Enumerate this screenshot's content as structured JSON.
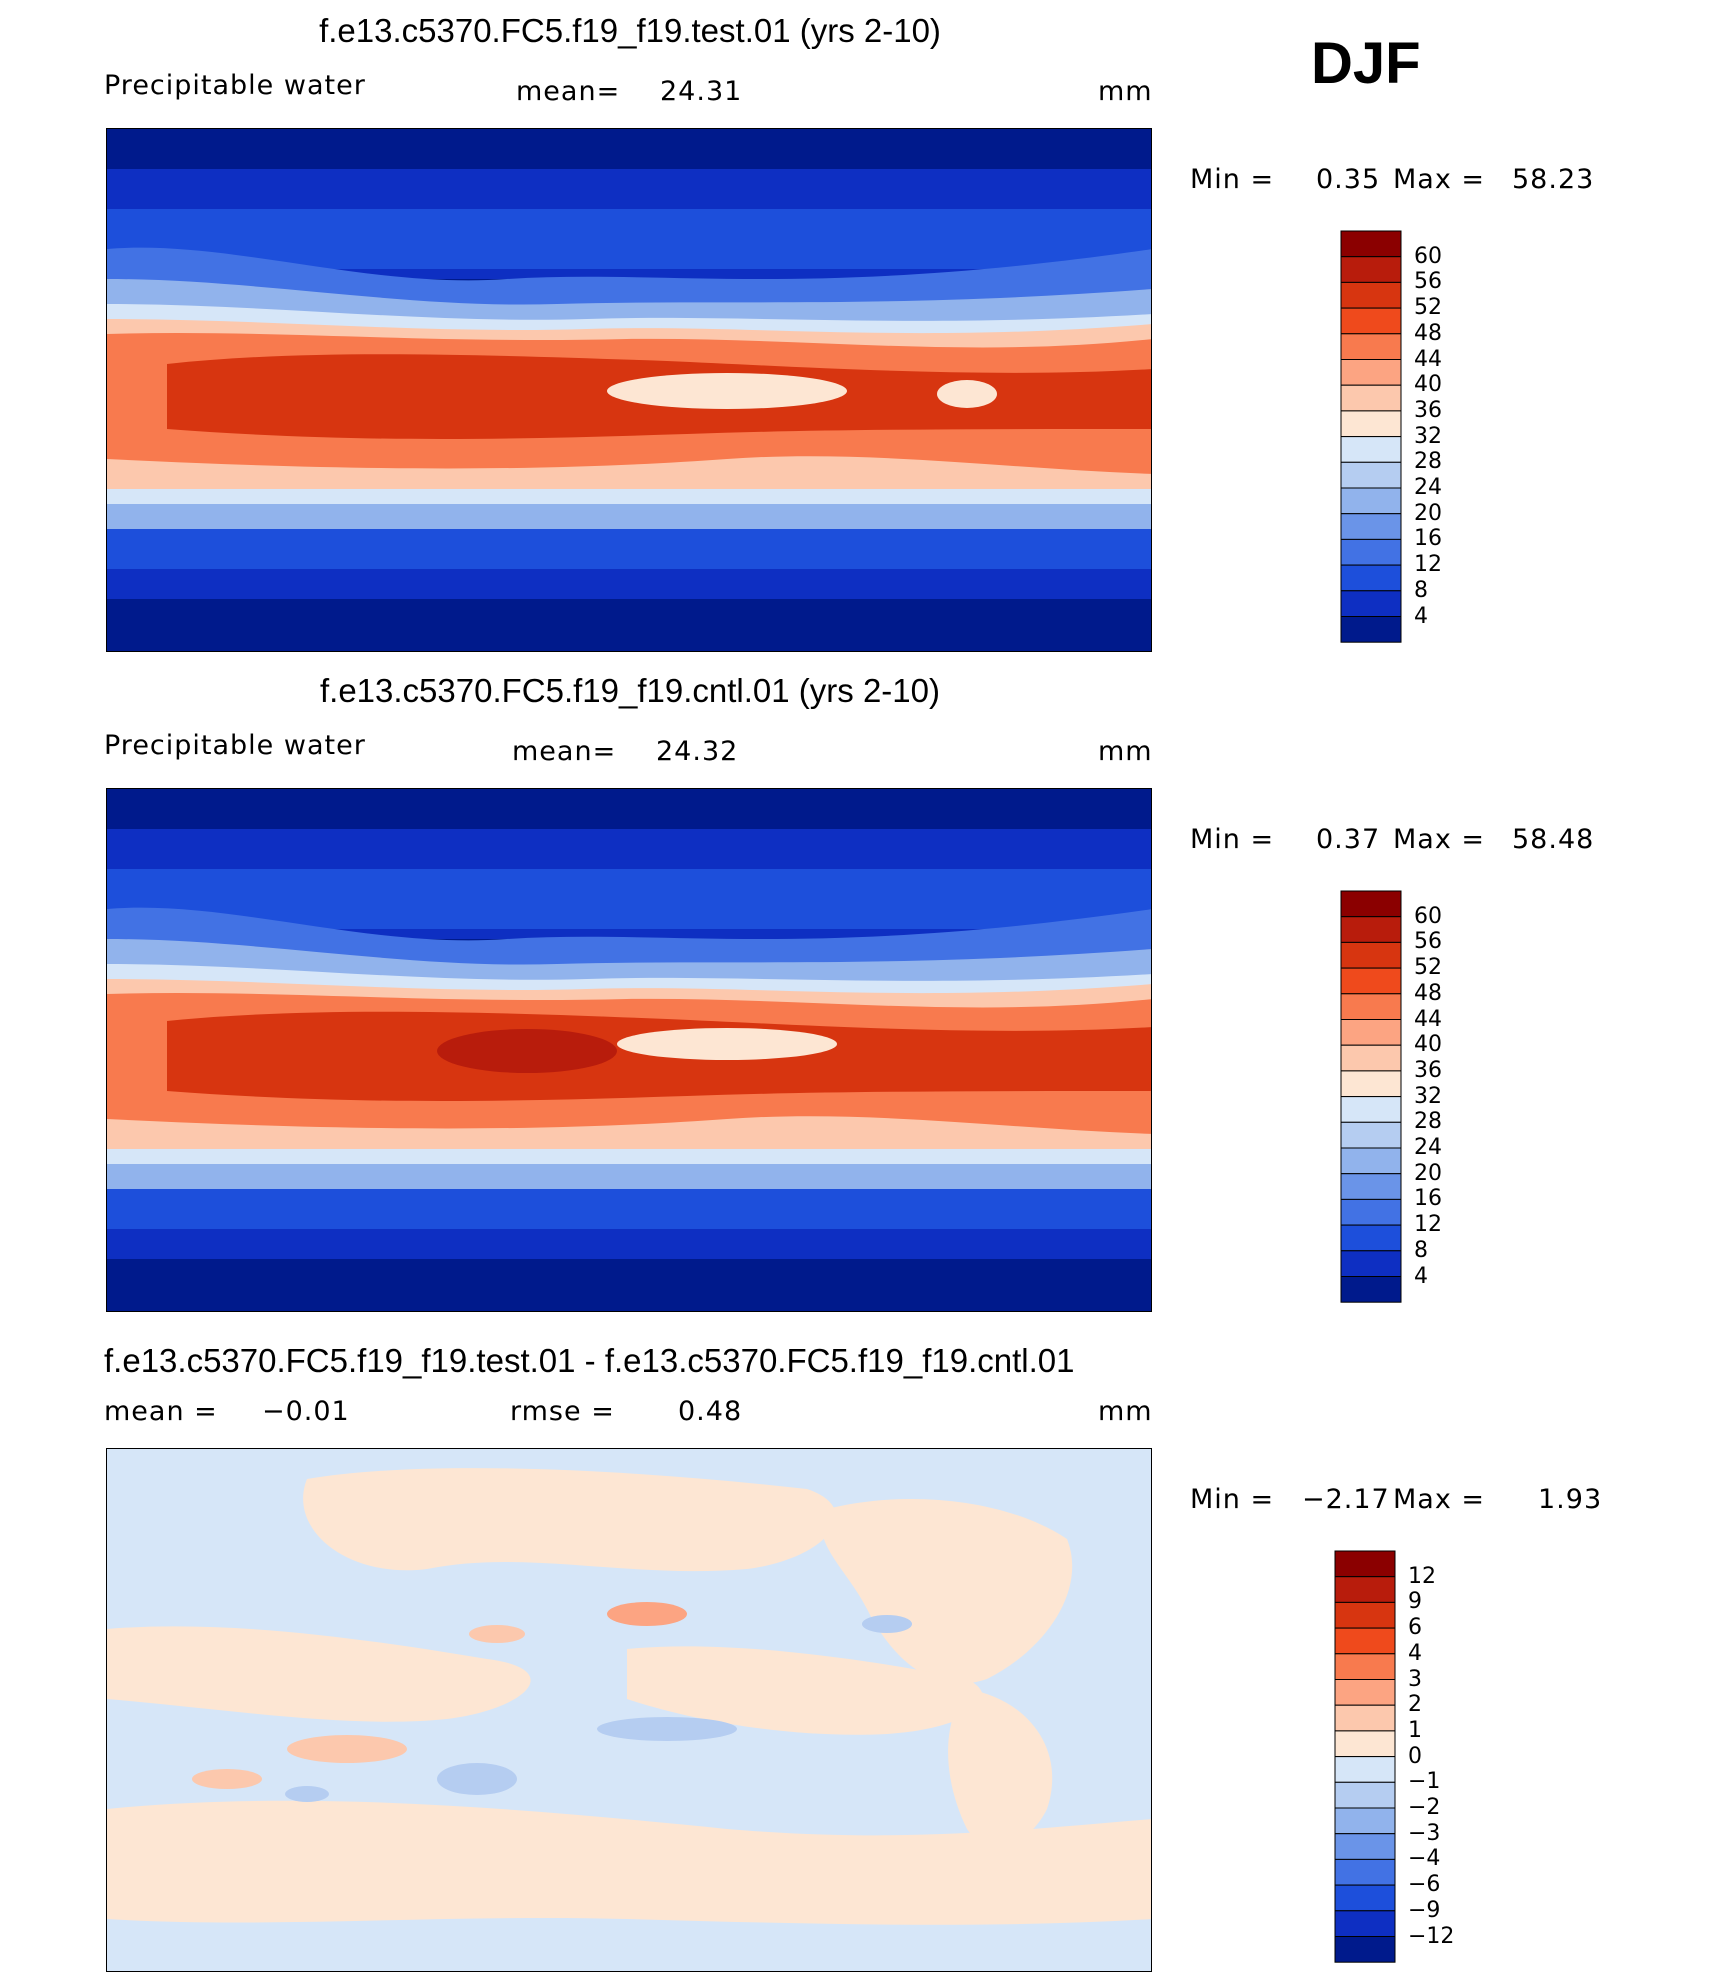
{
  "season": "DJF",
  "chart_data": [
    {
      "type": "heatmap",
      "title": "f.e13.c5370.FC5.f19_f19.test.01 (yrs 2-10)",
      "variable": "Precipitable water",
      "mean_label": "mean=",
      "mean": "24.31",
      "units": "mm",
      "min_label": "Min =",
      "min": "0.35",
      "max_label": "Max =",
      "max": "58.23",
      "levels": [
        "60",
        "56",
        "52",
        "48",
        "44",
        "40",
        "36",
        "32",
        "28",
        "24",
        "20",
        "16",
        "12",
        "8",
        "4"
      ],
      "colors": [
        "#8b0000",
        "#b81c0c",
        "#d73510",
        "#ef4a1c",
        "#f87a4e",
        "#fca482",
        "#fcc8ad",
        "#fde6d3",
        "#d6e6f8",
        "#b5cdf1",
        "#91b3ec",
        "#6a94e8",
        "#4272e4",
        "#1d4fdb",
        "#0e2fc2",
        "#001a8c"
      ]
    },
    {
      "type": "heatmap",
      "title": "f.e13.c5370.FC5.f19_f19.cntl.01 (yrs 2-10)",
      "variable": "Precipitable water",
      "mean_label": "mean=",
      "mean": "24.32",
      "units": "mm",
      "min_label": "Min =",
      "min": "0.37",
      "max_label": "Max =",
      "max": "58.48",
      "levels": [
        "60",
        "56",
        "52",
        "48",
        "44",
        "40",
        "36",
        "32",
        "28",
        "24",
        "20",
        "16",
        "12",
        "8",
        "4"
      ],
      "colors": [
        "#8b0000",
        "#b81c0c",
        "#d73510",
        "#ef4a1c",
        "#f87a4e",
        "#fca482",
        "#fcc8ad",
        "#fde6d3",
        "#d6e6f8",
        "#b5cdf1",
        "#91b3ec",
        "#6a94e8",
        "#4272e4",
        "#1d4fdb",
        "#0e2fc2",
        "#001a8c"
      ]
    },
    {
      "type": "heatmap",
      "title": "f.e13.c5370.FC5.f19_f19.test.01 - f.e13.c5370.FC5.f19_f19.cntl.01",
      "mean_label": "mean =",
      "mean": "−0.01",
      "rmse_label": "rmse =",
      "rmse": "0.48",
      "units": "mm",
      "min_label": "Min =",
      "min": "−2.17",
      "max_label": "Max =",
      "max": "1.93",
      "levels": [
        "12",
        "9",
        "6",
        "4",
        "3",
        "2",
        "1",
        "0",
        "−1",
        "−2",
        "−3",
        "−4",
        "−6",
        "−9",
        "−12"
      ],
      "colors": [
        "#8b0000",
        "#b81c0c",
        "#d73510",
        "#ef4a1c",
        "#f87a4e",
        "#fca482",
        "#fcc8ad",
        "#fde6d3",
        "#d6e6f8",
        "#b5cdf1",
        "#91b3ec",
        "#6a94e8",
        "#4272e4",
        "#1d4fdb",
        "#0e2fc2",
        "#001a8c"
      ]
    }
  ]
}
